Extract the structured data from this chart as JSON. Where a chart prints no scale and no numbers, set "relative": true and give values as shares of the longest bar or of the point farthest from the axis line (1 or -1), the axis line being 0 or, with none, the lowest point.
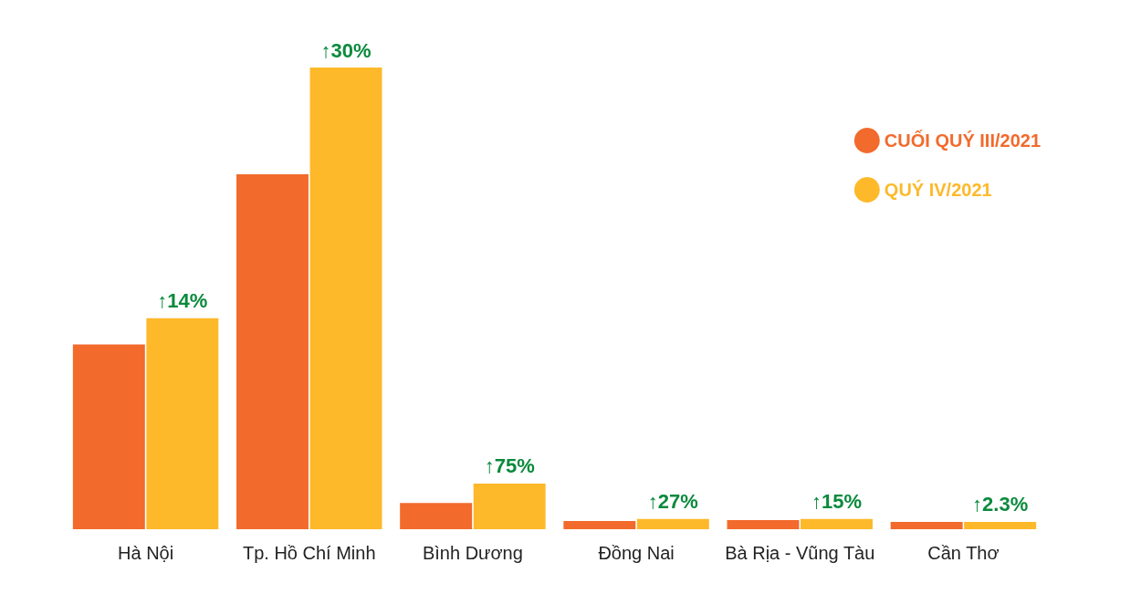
{
  "chart_data": {
    "type": "bar",
    "relative": true,
    "categories": [
      "Hà Nội",
      "Tp. Hồ Chí Minh",
      "Bình Dương",
      "Đồng Nai",
      "Bà Rịa - Vũng Tàu",
      "Cần Thơ"
    ],
    "series": [
      {
        "name": "CUỐI QUÝ III/2021",
        "color": "#f26a2c",
        "values": [
          0.4,
          0.769,
          0.057,
          0.018,
          0.02,
          0.016
        ]
      },
      {
        "name": "QUÝ IV/2021",
        "color": "#fdb92a",
        "values": [
          0.457,
          1,
          0.099,
          0.022,
          0.022,
          0.016
        ]
      }
    ],
    "annotations": [
      {
        "text": "↑14%",
        "x": "Hà Nội",
        "y": 0.457
      },
      {
        "text": "↑30%",
        "x": "Tp. Hồ Chí Minh",
        "y": 1
      },
      {
        "text": "↑75%",
        "x": "Bình Dương",
        "y": 0.099
      },
      {
        "text": "↑27%",
        "x": "Đồng Nai",
        "y": 0.022
      },
      {
        "text": "↑15%",
        "x": "Bà Rịa - Vũng Tàu",
        "y": 0.022
      },
      {
        "text": "↑2.3%",
        "x": "Cần Thơ",
        "y": 0.016
      }
    ],
    "legend": "top right"
  }
}
